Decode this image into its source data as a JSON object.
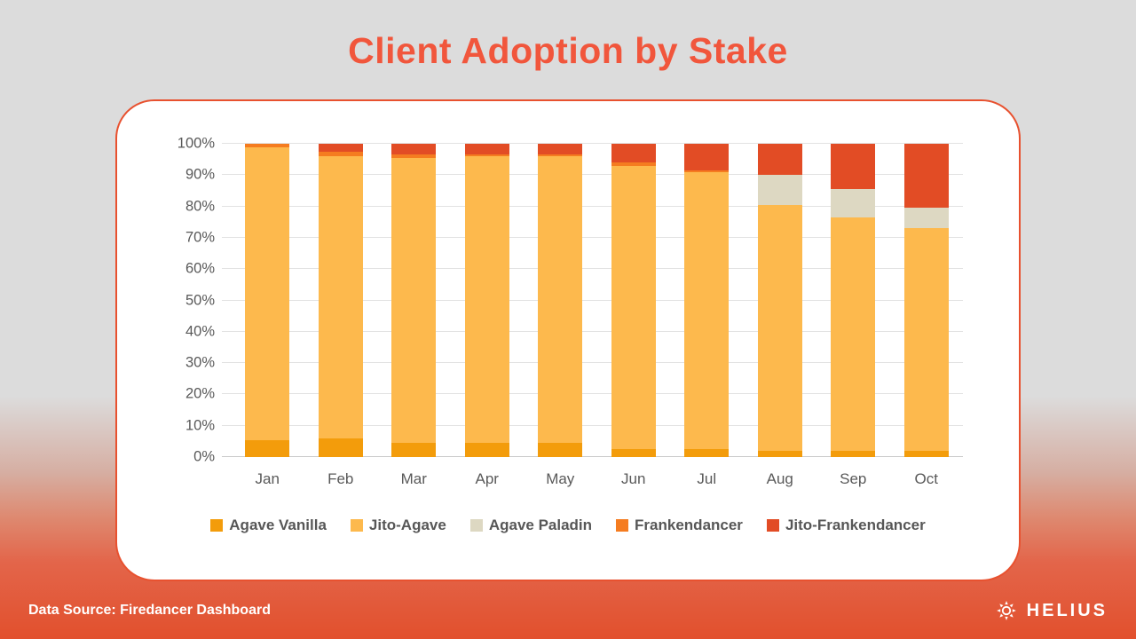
{
  "page": {
    "title": "Client Adoption by Stake",
    "accent_color": "#F1563C",
    "card_border_color": "#E8512F",
    "background_top_color": "#DCDCDC",
    "background_bottom_color": "#E2502D"
  },
  "chart_data": {
    "type": "bar",
    "stacked": true,
    "title": "Client Adoption by Stake",
    "categories": [
      "Jan",
      "Feb",
      "Mar",
      "Apr",
      "May",
      "Jun",
      "Jul",
      "Aug",
      "Sep",
      "Oct"
    ],
    "series": [
      {
        "name": "Agave Vanilla",
        "color": "#F39C0B",
        "values": [
          5.5,
          6,
          4.5,
          4.5,
          4.5,
          2.5,
          2.5,
          2,
          2,
          2
        ]
      },
      {
        "name": "Jito-Agave",
        "color": "#FDB94D",
        "values": [
          93.5,
          90,
          91,
          91.5,
          91.5,
          90.5,
          88.5,
          78.5,
          74.5,
          71
        ]
      },
      {
        "name": "Agave Paladin",
        "color": "#DDD8C2",
        "values": [
          0,
          0,
          0,
          0,
          0,
          0,
          0,
          9.5,
          9,
          6.5
        ]
      },
      {
        "name": "Frankendancer",
        "color": "#F57C20",
        "values": [
          1,
          1.5,
          1,
          0.5,
          0.5,
          1,
          0.5,
          0,
          0,
          0
        ]
      },
      {
        "name": "Jito-Frankendancer",
        "color": "#E24C25",
        "values": [
          0,
          2.5,
          3.5,
          3.5,
          3.5,
          6,
          8.5,
          10,
          14.5,
          20.5
        ]
      }
    ],
    "y_ticks": [
      "0%",
      "10%",
      "20%",
      "30%",
      "40%",
      "50%",
      "60%",
      "70%",
      "80%",
      "90%",
      "100%"
    ],
    "ylim": [
      0,
      100
    ],
    "xlabel": "",
    "ylabel": "",
    "grid": true,
    "legend_position": "bottom"
  },
  "footer": {
    "source_text": "Data Source: Firedancer Dashboard",
    "brand_name": "HELIUS"
  }
}
